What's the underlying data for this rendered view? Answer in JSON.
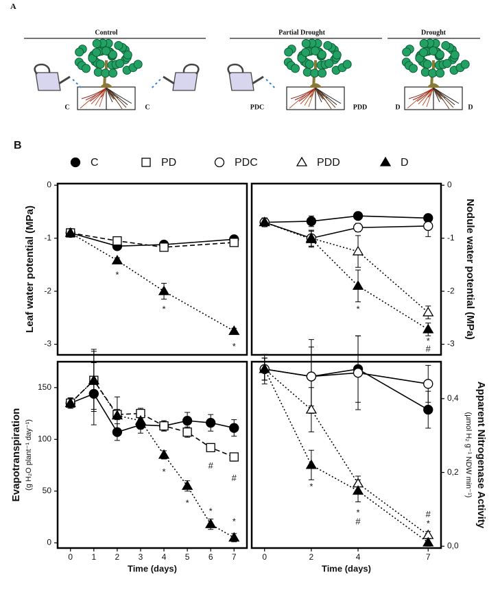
{
  "illustration": {
    "label": "A",
    "groups": [
      {
        "title": "Control",
        "left": "C",
        "right": "C"
      },
      {
        "title": "Partial Drought",
        "left": "PDC",
        "right": "PDD"
      },
      {
        "title": "Drought",
        "left": "D",
        "right": "D"
      }
    ]
  },
  "panel_label": "B",
  "chart_data": [
    {
      "type": "line",
      "ylabel": "Leaf water potential (MPa)",
      "y_axis_side": "left",
      "x": [
        0,
        2,
        4,
        7
      ],
      "xlim": [
        -0.55,
        7.55
      ],
      "ylim": [
        -3.2,
        0.03
      ],
      "yticks": [
        0,
        -1,
        -2,
        -3
      ],
      "series": [
        {
          "name": "C",
          "marker": "circle",
          "filled": true,
          "dash": "solid",
          "values": [
            -0.9,
            -1.15,
            -1.12,
            -1.02
          ],
          "errors": [
            0.05,
            0.04,
            0.04,
            0.04
          ]
        },
        {
          "name": "PD",
          "marker": "square",
          "filled": false,
          "dash": "dashed",
          "values": [
            -0.9,
            -1.05,
            -1.17,
            -1.08
          ],
          "errors": [
            0.05,
            0.04,
            0.04,
            0.04
          ]
        },
        {
          "name": "D",
          "marker": "triangle",
          "filled": true,
          "dash": "dotted",
          "values": [
            -0.9,
            -1.42,
            -2.0,
            -2.75
          ],
          "errors": [
            0.05,
            0.05,
            0.15,
            0.05
          ]
        }
      ],
      "annotations": [
        {
          "x": 2,
          "y": -1.7,
          "text": "*"
        },
        {
          "x": 4,
          "y": -2.35,
          "text": "*"
        },
        {
          "x": 7,
          "y": -3.05,
          "text": "*"
        }
      ]
    },
    {
      "type": "line",
      "ylabel": "Nodule water potential (MPa)",
      "y_axis_side": "right",
      "x": [
        0,
        2,
        4,
        7
      ],
      "xlim": [
        -0.55,
        7.55
      ],
      "ylim": [
        -3.2,
        0.03
      ],
      "yticks": [
        0,
        -1,
        -2,
        -3
      ],
      "series": [
        {
          "name": "C",
          "marker": "circle",
          "filled": true,
          "dash": "solid",
          "values": [
            -0.7,
            -0.68,
            -0.58,
            -0.62
          ],
          "errors": [
            0.08,
            0.1,
            0.05,
            0.05
          ]
        },
        {
          "name": "PDC",
          "marker": "circle",
          "filled": false,
          "dash": "solid",
          "values": [
            -0.7,
            -1.0,
            -0.8,
            -0.77
          ],
          "errors": [
            0.08,
            0.15,
            0.08,
            0.2
          ]
        },
        {
          "name": "PDD",
          "marker": "triangle",
          "filled": false,
          "dash": "dotted",
          "values": [
            -0.7,
            -1.0,
            -1.25,
            -2.4
          ],
          "errors": [
            0.08,
            0.15,
            0.3,
            0.12
          ]
        },
        {
          "name": "D",
          "marker": "triangle",
          "filled": true,
          "dash": "dotted",
          "values": [
            -0.7,
            -1.02,
            -1.9,
            -2.72
          ],
          "errors": [
            0.08,
            0.15,
            0.3,
            0.12
          ]
        }
      ],
      "annotations": [
        {
          "x": 4,
          "y": -2.35,
          "text": "*"
        },
        {
          "x": 7,
          "y": -2.95,
          "text": "*"
        },
        {
          "x": 7,
          "y": -3.1,
          "text": "#"
        }
      ]
    },
    {
      "type": "line",
      "ylabel": "Evapotranspiration",
      "ylabel_units": "(g H₂O plant⁻¹ day⁻¹)",
      "xlabel": "Time (days)",
      "y_axis_side": "left",
      "x": [
        0,
        1,
        2,
        3,
        4,
        5,
        6,
        7
      ],
      "xlim": [
        -0.55,
        7.55
      ],
      "ylim": [
        -5,
        175
      ],
      "yticks": [
        0,
        50,
        100,
        150
      ],
      "xticks": [
        0,
        1,
        2,
        3,
        4,
        5,
        6,
        7
      ],
      "series": [
        {
          "name": "C",
          "marker": "circle",
          "filled": true,
          "dash": "solid",
          "values": [
            135,
            144,
            107,
            114,
            113,
            118,
            116,
            111
          ],
          "errors": [
            5,
            30,
            8,
            8,
            5,
            8,
            8,
            8
          ]
        },
        {
          "name": "PD",
          "marker": "square",
          "filled": false,
          "dash": "dashed",
          "values": [
            135,
            157,
            124,
            125,
            113,
            107,
            92,
            83
          ],
          "errors": [
            5,
            28,
            5,
            5,
            4,
            5,
            4,
            4
          ]
        },
        {
          "name": "D",
          "marker": "triangle",
          "filled": true,
          "dash": "dotted",
          "values": [
            135,
            157,
            123,
            118,
            85,
            55,
            18,
            5
          ],
          "errors": [
            5,
            30,
            18,
            8,
            4,
            5,
            5,
            4
          ]
        }
      ],
      "annotations": [
        {
          "x": 4,
          "y": 68,
          "text": "*"
        },
        {
          "x": 5,
          "y": 38,
          "text": "*"
        },
        {
          "x": 6,
          "y": 30,
          "text": "*"
        },
        {
          "x": 7,
          "y": 20,
          "text": "*"
        },
        {
          "x": 6,
          "y": 74,
          "text": "#"
        },
        {
          "x": 7,
          "y": 62,
          "text": "#"
        }
      ]
    },
    {
      "type": "line",
      "ylabel": "Apparent Nitrogenase Activity",
      "ylabel_units": "(µmol H₂ g⁻¹ NDW min⁻¹)",
      "xlabel": "Time (days)",
      "y_axis_side": "right",
      "x": [
        0,
        2,
        4,
        7
      ],
      "xlim": [
        -0.55,
        7.55
      ],
      "ylim": [
        -0.005,
        0.5
      ],
      "xticks": [
        0,
        2,
        4,
        7
      ],
      "yticks": [
        {
          "value": 0,
          "label": "0,0"
        },
        {
          "value": 0.2,
          "label": "0,2"
        },
        {
          "value": 0.4,
          "label": "0,4"
        }
      ],
      "series": [
        {
          "name": "C",
          "marker": "circle",
          "filled": true,
          "dash": "solid",
          "values": [
            0.48,
            0.46,
            0.48,
            0.37
          ],
          "errors": [
            0.04,
            0.08,
            0.09,
            0.05
          ]
        },
        {
          "name": "PDC",
          "marker": "circle",
          "filled": false,
          "dash": "solid",
          "values": [
            0.48,
            0.46,
            0.47,
            0.44
          ],
          "errors": [
            0.03,
            0.1,
            0.1,
            0.05
          ]
        },
        {
          "name": "PDD",
          "marker": "triangle",
          "filled": false,
          "dash": "dotted",
          "values": [
            0.48,
            0.37,
            0.17,
            0.03
          ],
          "errors": [
            0.03,
            0.06,
            0.02,
            0.01
          ]
        },
        {
          "name": "D",
          "marker": "triangle",
          "filled": true,
          "dash": "dotted",
          "values": [
            0.48,
            0.22,
            0.15,
            0.01
          ],
          "errors": [
            0.03,
            0.04,
            0.03,
            0.01
          ]
        }
      ],
      "annotations": [
        {
          "x": 2,
          "y": 0.16,
          "text": "*"
        },
        {
          "x": 4,
          "y": 0.09,
          "text": "*"
        },
        {
          "x": 4,
          "y": 0.065,
          "text": "#"
        },
        {
          "x": 7,
          "y": 0.085,
          "text": "#"
        },
        {
          "x": 7,
          "y": 0.06,
          "text": "*"
        }
      ]
    }
  ]
}
